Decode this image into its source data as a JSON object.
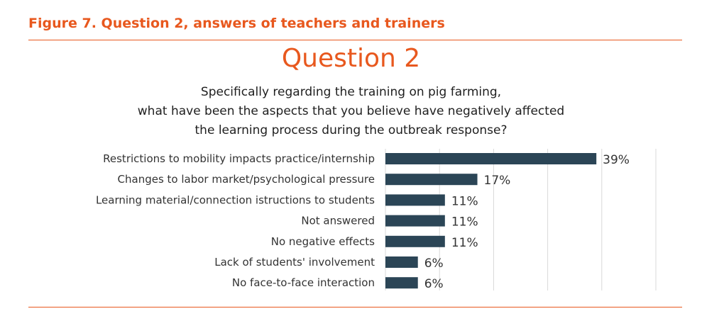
{
  "caption": "Figure 7. Question 2, answers of teachers and trainers",
  "chart_data": {
    "type": "bar",
    "orientation": "horizontal",
    "title": "Question 2",
    "subtitle_lines": [
      "Specifically regarding the training on pig farming,",
      "what have been the aspects that you believe have negatively affected",
      "the learning process during the outbreak response?"
    ],
    "categories": [
      "Restrictions to mobility impacts practice/internship",
      "Changes to labor market/psychological pressure",
      "Learning material/connection istructions to students",
      "Not answered",
      "No negative effects",
      "Lack of students' involvement",
      "No face-to-face interaction"
    ],
    "values": [
      39,
      17,
      11,
      11,
      11,
      6,
      6
    ],
    "value_labels": [
      "39%",
      "17%",
      "11%",
      "11%",
      "11%",
      "6%",
      "6%"
    ],
    "xlim": [
      0,
      50
    ],
    "grid": true,
    "bar_color": "#2b4556"
  },
  "colors": {
    "accent": "#e8581e",
    "bar": "#2b4556",
    "grid": "#d9d9d9"
  }
}
